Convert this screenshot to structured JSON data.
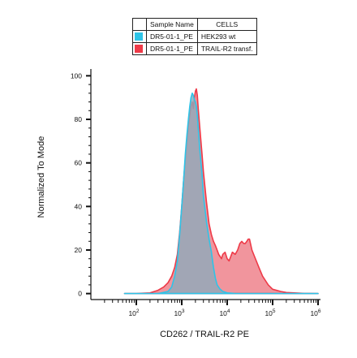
{
  "chart_data": {
    "type": "area",
    "xlabel": "CD262 / TRAIL-R2 PE",
    "ylabel": "Normalized To Mode",
    "xscale": "log",
    "xlim": [
      10,
      1000000
    ],
    "ylim": [
      -2,
      102
    ],
    "x_ticks": [
      {
        "value": 100,
        "base": "10",
        "exp": "2"
      },
      {
        "value": 1000,
        "base": "10",
        "exp": "3"
      },
      {
        "value": 10000,
        "base": "10",
        "exp": "4"
      },
      {
        "value": 100000,
        "base": "10",
        "exp": "5"
      },
      {
        "value": 1000000,
        "base": "10",
        "exp": "6"
      }
    ],
    "y_ticks": [
      0,
      20,
      40,
      60,
      80,
      100
    ],
    "legend": {
      "placement": "top",
      "header": [
        "Sample Name",
        "CELLS"
      ],
      "rows": [
        {
          "sample": "DR5-01-1_PE",
          "cells": "HEK293 wt",
          "color": "#2ec4e8"
        },
        {
          "sample": "DR5-01-1_PE",
          "cells": "TRAIL-R2 transf.",
          "color": "#ee3a48"
        }
      ]
    },
    "series": [
      {
        "sample": "DR5-01-1_PE",
        "cells": "TRAIL-R2 transf.",
        "color": "#ee3a48",
        "fill": "#f08a92",
        "x": [
          55,
          100,
          200,
          300,
          400,
          500,
          600,
          700,
          800,
          900,
          1000,
          1100,
          1200,
          1300,
          1400,
          1500,
          1600,
          1700,
          1800,
          1900,
          2000,
          2100,
          2200,
          2300,
          2500,
          2800,
          3000,
          3500,
          4000,
          4500,
          5000,
          5500,
          6000,
          6500,
          7000,
          7500,
          8000,
          9000,
          10000,
          11000,
          12000,
          13000,
          15000,
          17000,
          19000,
          21000,
          23000,
          25000,
          27000,
          29000,
          31000,
          35000,
          40000,
          50000,
          60000,
          80000,
          100000,
          150000,
          200000,
          300000,
          500000,
          1000000
        ],
        "y": [
          0,
          0,
          0.3,
          1.5,
          3,
          5,
          8,
          12,
          18,
          28,
          40,
          52,
          62,
          70,
          77,
          82,
          86,
          88,
          85,
          90,
          93,
          94,
          91,
          85,
          76,
          64,
          56,
          42,
          32,
          27,
          24,
          22,
          20,
          18,
          17,
          16,
          18,
          19,
          16,
          15,
          17,
          19,
          18,
          20,
          23,
          24,
          23,
          23,
          24,
          25,
          25,
          20,
          17,
          12,
          8,
          4,
          2,
          1,
          0.5,
          0.3,
          0.1,
          0
        ]
      },
      {
        "sample": "DR5-01-1_PE",
        "cells": "HEK293 wt",
        "color": "#2ec4e8",
        "fill": "#8fa9bb",
        "x": [
          55,
          100,
          300,
          500,
          600,
          700,
          800,
          900,
          1000,
          1100,
          1200,
          1300,
          1400,
          1500,
          1600,
          1700,
          1800,
          1900,
          2000,
          2100,
          2200,
          2300,
          2500,
          2800,
          3000,
          3500,
          4000,
          4500,
          5000,
          5500,
          6000,
          7000,
          8000,
          10000,
          15000,
          30000,
          100000,
          1000000
        ],
        "y": [
          0,
          0,
          0,
          1,
          3,
          8,
          15,
          27,
          40,
          52,
          64,
          73,
          80,
          86,
          90,
          92,
          91,
          89,
          88,
          86,
          82,
          76,
          66,
          55,
          45,
          33,
          25,
          19,
          12,
          7,
          4,
          2,
          1,
          0.3,
          0,
          0,
          0,
          0
        ]
      }
    ]
  }
}
